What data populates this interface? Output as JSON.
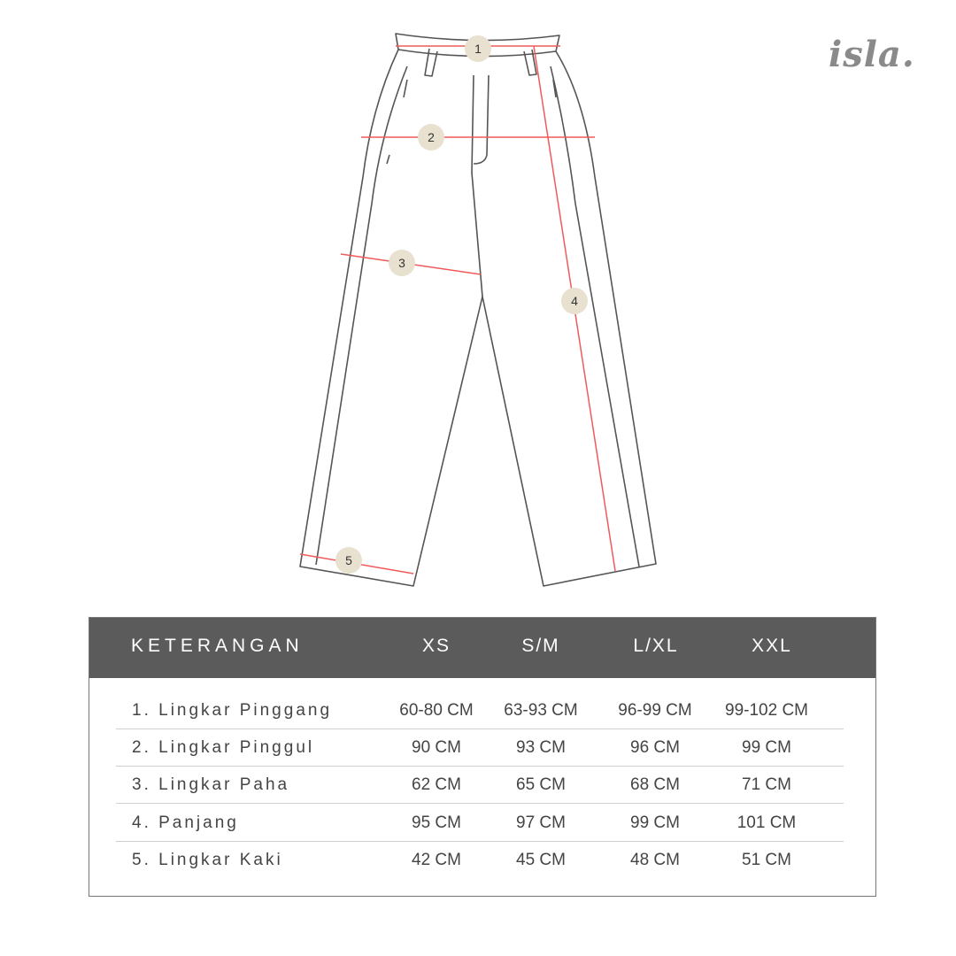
{
  "brand": {
    "logo_text": "isla."
  },
  "diagram": {
    "markers": [
      "1",
      "2",
      "3",
      "4",
      "5"
    ],
    "colors": {
      "outline": "#555555",
      "measure_line": "#f05a5a",
      "marker_fill": "#e9e1d0"
    }
  },
  "table": {
    "header": {
      "label": "KETERANGAN",
      "sizes": [
        "XS",
        "S/M",
        "L/XL",
        "XXL"
      ]
    },
    "rows": [
      {
        "label": "1. Lingkar Pinggang",
        "values": [
          "60-80 CM",
          "63-93 CM",
          "96-99 CM",
          "99-102 CM"
        ]
      },
      {
        "label": "2. Lingkar Pinggul",
        "values": [
          "90 CM",
          "93 CM",
          "96 CM",
          "99 CM"
        ]
      },
      {
        "label": "3. Lingkar Paha",
        "values": [
          "62 CM",
          "65 CM",
          "68 CM",
          "71 CM"
        ]
      },
      {
        "label": "4. Panjang",
        "values": [
          "95 CM",
          "97 CM",
          "99 CM",
          "101 CM"
        ]
      },
      {
        "label": "5. Lingkar Kaki",
        "values": [
          "42 CM",
          "45 CM",
          "48 CM",
          "51 CM"
        ]
      }
    ],
    "colors": {
      "header_bg": "#5b5b5b"
    }
  }
}
